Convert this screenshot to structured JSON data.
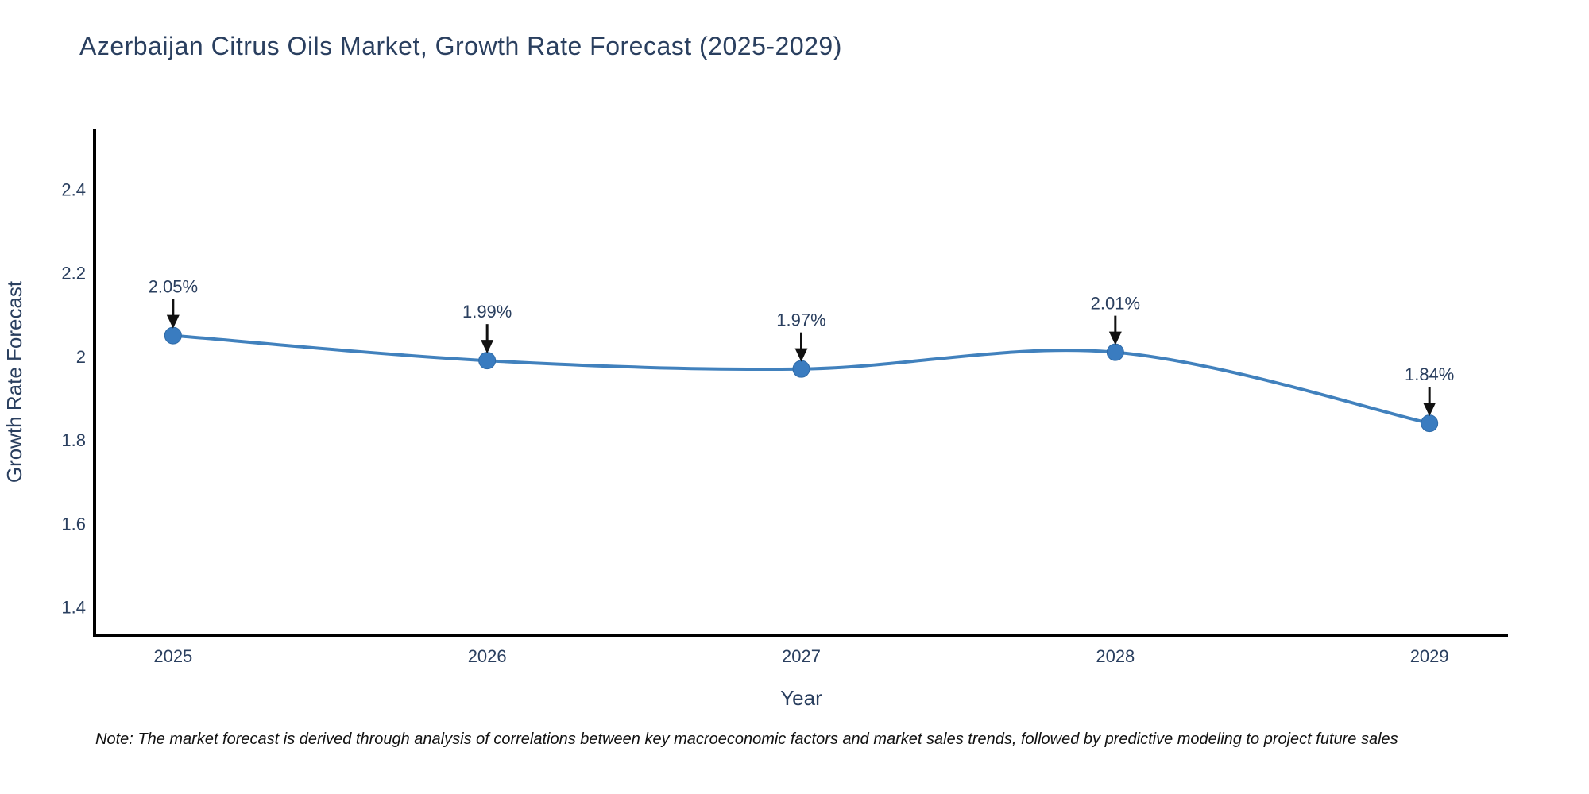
{
  "title": "Azerbaijan Citrus Oils Market, Growth Rate Forecast (2025-2029)",
  "note": "Note: The market forecast is derived through analysis of correlations between key macroeconomic factors and market sales trends, followed by predictive modeling to project future sales",
  "chart_data": {
    "type": "line",
    "title": "Azerbaijan Citrus Oils Market, Growth Rate Forecast (2025-2029)",
    "xlabel": "Year",
    "ylabel": "Growth Rate Forecast",
    "x": [
      2025,
      2026,
      2027,
      2028,
      2029
    ],
    "values": [
      2.05,
      1.99,
      1.97,
      2.01,
      1.84
    ],
    "point_labels": [
      "2.05%",
      "1.99%",
      "1.97%",
      "2.01%",
      "1.84%"
    ],
    "xtick_labels": [
      "2025",
      "2026",
      "2027",
      "2028",
      "2029"
    ],
    "yticks": [
      1.4,
      1.6,
      1.8,
      2.0,
      2.2,
      2.4
    ],
    "ytick_labels": [
      "1.4",
      "1.6",
      "1.8",
      "2",
      "2.2",
      "2.4"
    ],
    "xlim": [
      2024.75,
      2029.25
    ],
    "ylim": [
      1.333,
      2.545
    ],
    "grid": false,
    "line_shape": "spline",
    "legend": "none",
    "colors": {
      "line": "#4181bd",
      "marker": "#3a7cc0",
      "marker_edge": "#2f6ba8",
      "arrow": "#111111",
      "text": "#2a3f5f",
      "axis": "#000000"
    }
  }
}
